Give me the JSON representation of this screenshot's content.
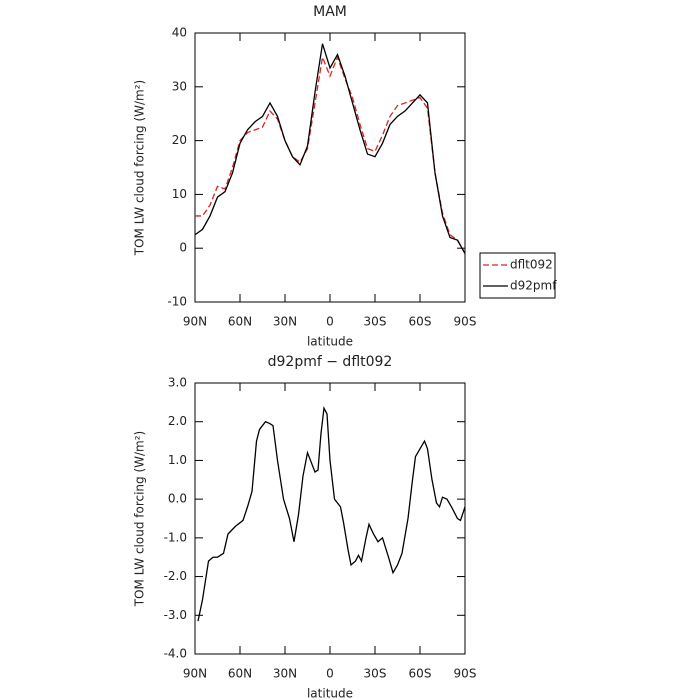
{
  "chart_data": [
    {
      "type": "line",
      "title": "MAM",
      "xlabel": "latitude",
      "ylabel": "TOM LW cloud forcing (W/m²)",
      "x": [
        90,
        85,
        80,
        75,
        70,
        65,
        60,
        55,
        50,
        45,
        40,
        35,
        30,
        25,
        20,
        15,
        10,
        5,
        0,
        -5,
        -10,
        -15,
        -20,
        -25,
        -30,
        -35,
        -40,
        -45,
        -50,
        -55,
        -60,
        -65,
        -70,
        -75,
        -80,
        -85,
        -90
      ],
      "series": [
        {
          "name": "dflt092",
          "color": "#e02020",
          "dash": true,
          "values": [
            6,
            6,
            8,
            11.5,
            11,
            15,
            20,
            21.5,
            22,
            22.5,
            25.5,
            24,
            20,
            17,
            16,
            18.5,
            27,
            35.5,
            32,
            35.5,
            31.5,
            28,
            23,
            18.5,
            18,
            21,
            24.5,
            26.5,
            27,
            27.5,
            28,
            26,
            14,
            6.5,
            2.5,
            1.5,
            -1
          ]
        },
        {
          "name": "d92pmf",
          "color": "#000000",
          "dash": false,
          "values": [
            2.5,
            3.5,
            6,
            9.5,
            10.5,
            14,
            19.5,
            22,
            23.5,
            24.5,
            27,
            24.5,
            20,
            17,
            15.5,
            19,
            29,
            38,
            33.5,
            36,
            32,
            27,
            22,
            17.5,
            17,
            19.5,
            23,
            24.5,
            25.5,
            27,
            28.5,
            27,
            14,
            6,
            2,
            1.5,
            -1
          ]
        }
      ],
      "xlim": [
        90,
        -90
      ],
      "xticks": [
        {
          "value": 90,
          "label": "90N"
        },
        {
          "value": 60,
          "label": "60N"
        },
        {
          "value": 30,
          "label": "30N"
        },
        0,
        {
          "value": -30,
          "label": "30S"
        },
        {
          "value": -60,
          "label": "60S"
        },
        {
          "value": -90,
          "label": "90S"
        }
      ],
      "ylim": [
        -10,
        40
      ],
      "yticks": [
        -10,
        0,
        10,
        20,
        30,
        40
      ],
      "legend": "right"
    },
    {
      "type": "line",
      "title": "d92pmf − dflt092",
      "xlabel": "latitude",
      "ylabel": "TOM LW cloud forcing (W/m²)",
      "x": [
        88,
        85,
        81,
        78,
        75,
        71,
        68,
        63,
        58,
        55,
        52,
        49,
        47,
        43,
        40,
        38,
        35,
        31,
        27,
        24,
        21,
        18,
        15,
        12,
        10,
        8,
        6,
        4,
        2,
        0,
        -3,
        -7,
        -9,
        -12,
        -14,
        -17,
        -19,
        -21,
        -24,
        -26,
        -29,
        -32,
        -35,
        -39,
        -42,
        -45,
        -48,
        -52,
        -55,
        -57,
        -60,
        -63,
        -65,
        -68,
        -71,
        -73,
        -75,
        -78,
        -81,
        -85,
        -87,
        -90
      ],
      "series": [
        {
          "color": "#000000",
          "dash": false,
          "values": [
            -3.15,
            -2.6,
            -1.6,
            -1.5,
            -1.5,
            -1.4,
            -0.9,
            -0.7,
            -0.55,
            -0.2,
            0.2,
            1.5,
            1.8,
            2.0,
            1.95,
            1.9,
            1.0,
            0.0,
            -0.5,
            -1.1,
            -0.4,
            0.6,
            1.2,
            0.9,
            0.7,
            0.75,
            1.7,
            2.35,
            2.2,
            1.0,
            0.0,
            -0.2,
            -0.6,
            -1.3,
            -1.7,
            -1.6,
            -1.45,
            -1.6,
            -1.0,
            -0.65,
            -0.9,
            -1.1,
            -1.0,
            -1.5,
            -1.9,
            -1.7,
            -1.4,
            -0.5,
            0.5,
            1.1,
            1.3,
            1.5,
            1.3,
            0.5,
            -0.1,
            -0.2,
            0.05,
            0.0,
            -0.2,
            -0.5,
            -0.55,
            -0.2
          ]
        }
      ],
      "xlim": [
        90,
        -90
      ],
      "xticks": [
        {
          "value": 90,
          "label": "90N"
        },
        {
          "value": 60,
          "label": "60N"
        },
        {
          "value": 30,
          "label": "30N"
        },
        0,
        {
          "value": -30,
          "label": "30S"
        },
        {
          "value": -60,
          "label": "60S"
        },
        {
          "value": -90,
          "label": "90S"
        }
      ],
      "ylim": [
        -4,
        3
      ],
      "yticks": [
        {
          "value": -4,
          "label": "-4.0"
        },
        {
          "value": -3,
          "label": "-3.0"
        },
        {
          "value": -2,
          "label": "-2.0"
        },
        {
          "value": -1,
          "label": "-1.0"
        },
        {
          "value": 0,
          "label": "0.0"
        },
        {
          "value": 1,
          "label": "1.0"
        },
        {
          "value": 2,
          "label": "2.0"
        },
        {
          "value": 3,
          "label": "3.0"
        }
      ]
    }
  ]
}
